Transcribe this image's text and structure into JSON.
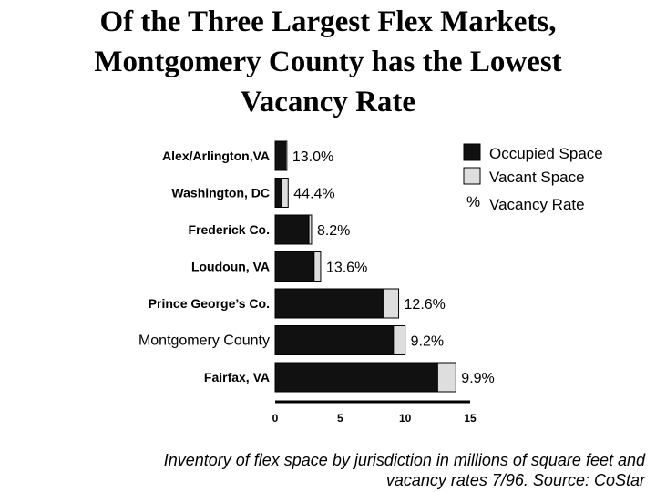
{
  "title_lines": [
    "Of the Three Largest Flex Markets,",
    "Montgomery County has the Lowest",
    "Vacancy Rate"
  ],
  "caption_lines": [
    "Inventory of flex space by jurisdiction in millions of square feet and",
    "vacancy rates 7/96.  Source: CoStar"
  ],
  "legend": {
    "occupied": "Occupied Space",
    "vacant": "Vacant Space",
    "rate_symbol": "%",
    "rate": "Vacancy Rate"
  },
  "colors": {
    "occupied": "#111111",
    "vacant": "#dedede",
    "outline": "#000000"
  },
  "chart_data": {
    "type": "bar",
    "orientation": "horizontal",
    "stacked": true,
    "title": "Of the Three Largest Flex Markets, Montgomery County has the Lowest Vacancy Rate",
    "xlabel": "",
    "ylabel": "",
    "xlim": [
      0,
      15
    ],
    "x_ticks": [
      0,
      5,
      10,
      15
    ],
    "grid": false,
    "legend_position": "top-right",
    "categories": [
      "Alex/Arlington,VA",
      "Washington, DC",
      "Frederick Co.",
      "Loudoun, VA",
      "Prince George’s Co.",
      "Montgomery County",
      "Fairfax, VA"
    ],
    "series": [
      {
        "name": "Occupied Space",
        "values": [
          0.8,
          0.5,
          2.6,
          3.0,
          8.3,
          9.1,
          12.5
        ]
      },
      {
        "name": "Vacant Space",
        "values": [
          0.1,
          0.5,
          0.2,
          0.5,
          1.2,
          0.9,
          1.4
        ]
      }
    ],
    "data_labels": [
      "13.0%",
      "44.4%",
      "8.2%",
      "13.6%",
      "12.6%",
      "9.2%",
      "9.9%"
    ]
  }
}
